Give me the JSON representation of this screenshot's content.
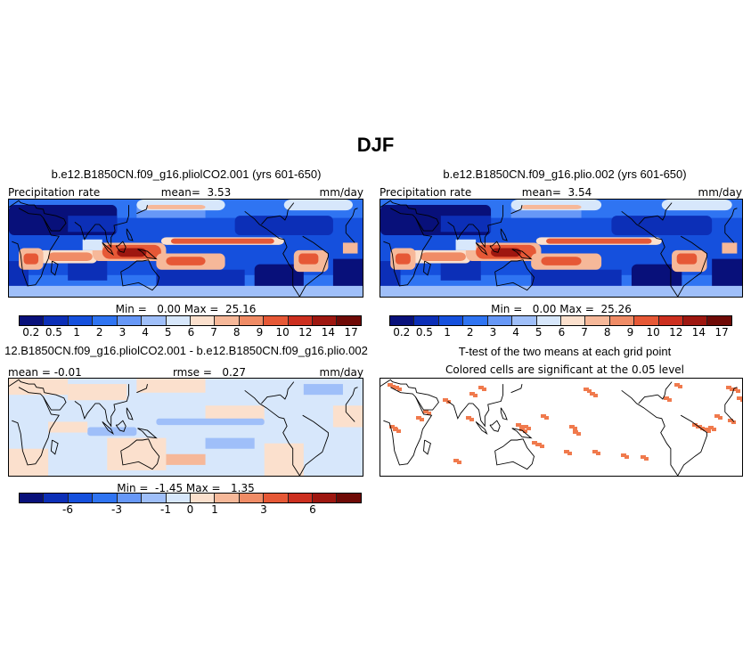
{
  "figure_title": "DJF",
  "colors": {
    "palette": [
      "#08107a",
      "#0c2fb7",
      "#1550dd",
      "#2f74f2",
      "#6798f7",
      "#9fbff9",
      "#d7e7fb",
      "#fbe0cd",
      "#f6b899",
      "#f08c66",
      "#e65836",
      "#cc2f1f",
      "#9e1710",
      "#6f0a06"
    ],
    "significance": "#f07a4d",
    "coast": "#000000"
  },
  "panels": [
    {
      "title": "b.e12.B1850CN.f09_g16.pliolCO2.001 (yrs 601-650)",
      "left_label": "Precipitation rate",
      "center_label": "mean=  3.53",
      "right_label": "mm/day",
      "minmax": "Min =   0.00 Max =  25.16"
    },
    {
      "title": "b.e12.B1850CN.f09_g16.plio.002 (yrs 601-650)",
      "left_label": "Precipitation rate",
      "center_label": "mean=  3.54",
      "right_label": "mm/day",
      "minmax": "Min =   0.00 Max =  25.26"
    },
    {
      "title": "12.B1850CN.f09_g16.pliolCO2.001 - b.e12.B1850CN.f09_g16.plio.002",
      "left_label": "mean = -0.01",
      "center_label": "rmse =   0.27",
      "right_label": "mm/day",
      "minmax": "Min =  -1.45 Max =   1.35"
    },
    {
      "title": "T-test of the two means at each grid point",
      "subtitle": "Colored cells are significant at the 0.05 level"
    }
  ],
  "chart_data": [
    {
      "type": "heatmap",
      "title": "b.e12.B1850CN.f09_g16.pliolCO2.001 (yrs 601-650)",
      "variable": "Precipitation rate",
      "units": "mm/day",
      "mean": 3.53,
      "min": 0.0,
      "max": 25.16,
      "contour_levels": [
        0.2,
        0.5,
        1,
        2,
        3,
        4,
        5,
        6,
        7,
        8,
        9,
        10,
        12,
        14,
        17
      ],
      "colorbar_labels": [
        "0.2",
        "0.5",
        "1",
        "2",
        "3",
        "4",
        "5",
        "6",
        "7",
        "8",
        "9",
        "10",
        "12",
        "14",
        "17"
      ]
    },
    {
      "type": "heatmap",
      "title": "b.e12.B1850CN.f09_g16.plio.002 (yrs 601-650)",
      "variable": "Precipitation rate",
      "units": "mm/day",
      "mean": 3.54,
      "min": 0.0,
      "max": 25.26,
      "contour_levels": [
        0.2,
        0.5,
        1,
        2,
        3,
        4,
        5,
        6,
        7,
        8,
        9,
        10,
        12,
        14,
        17
      ],
      "colorbar_labels": [
        "0.2",
        "0.5",
        "1",
        "2",
        "3",
        "4",
        "5",
        "6",
        "7",
        "8",
        "9",
        "10",
        "12",
        "14",
        "17"
      ]
    },
    {
      "type": "heatmap",
      "title": "12.B1850CN.f09_g16.pliolCO2.001 - b.e12.B1850CN.f09_g16.plio.002",
      "units": "mm/day",
      "mean": -0.01,
      "rmse": 0.27,
      "min": -1.45,
      "max": 1.35,
      "colorbar_labels": [
        "-6",
        "-3",
        "-1",
        "0",
        "1",
        "3",
        "6"
      ]
    },
    {
      "type": "heatmap",
      "title": "T-test of the two means at each grid point",
      "subtitle": "Colored cells are significant at the 0.05 level",
      "significance_level": 0.05
    }
  ]
}
